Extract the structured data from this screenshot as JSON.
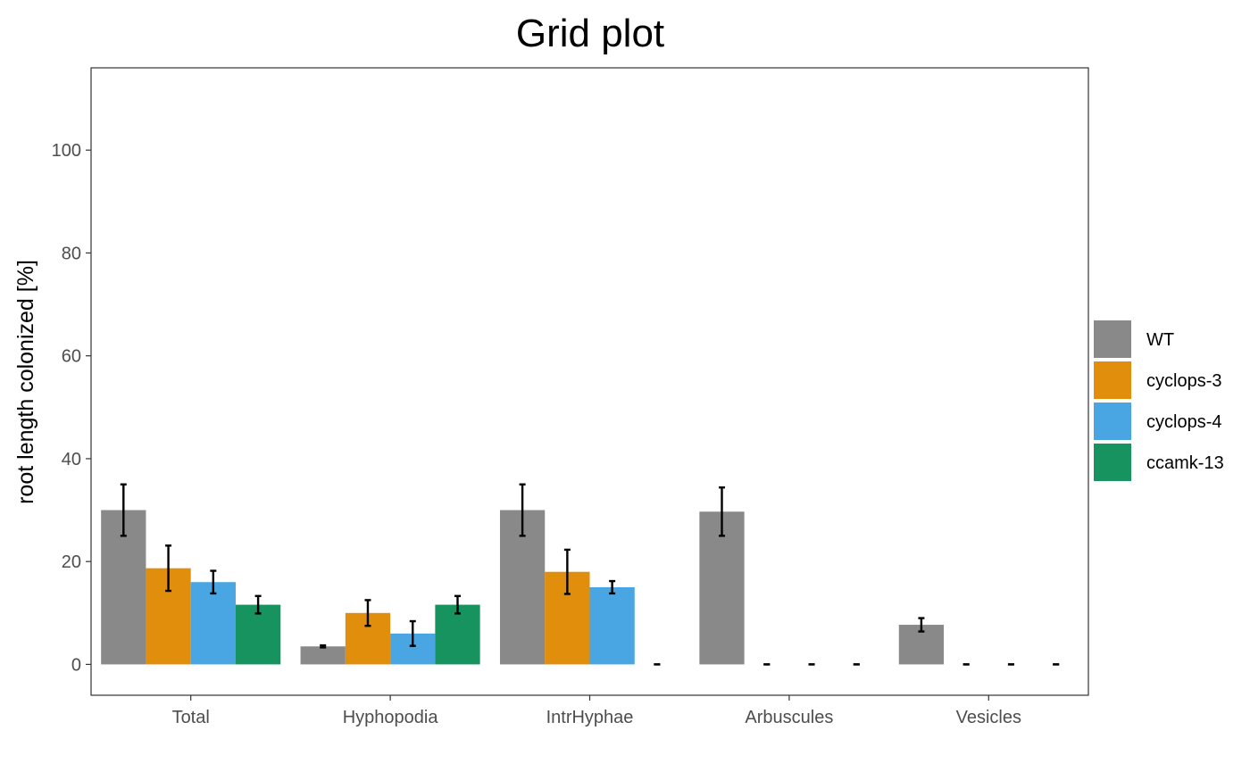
{
  "chart_data": {
    "type": "bar",
    "title": "Grid plot",
    "xlabel": "",
    "ylabel": "root length colonized [%]",
    "ylim": [
      -6,
      116
    ],
    "yticks": [
      0,
      20,
      40,
      60,
      80,
      100
    ],
    "categories": [
      "Total",
      "Hyphopodia",
      "IntrHyphae",
      "Arbuscules",
      "Vesicles"
    ],
    "series": [
      {
        "name": "WT",
        "color": "#898989",
        "values": [
          30.0,
          3.5,
          30.0,
          29.7,
          7.7
        ],
        "err": [
          5.0,
          0.2,
          5.0,
          4.7,
          1.3
        ]
      },
      {
        "name": "cyclops-3",
        "color": "#E08E0B",
        "values": [
          18.7,
          10.0,
          18.0,
          0,
          0
        ],
        "err": [
          4.4,
          2.5,
          4.3,
          0,
          0
        ]
      },
      {
        "name": "cyclops-4",
        "color": "#4AA6E2",
        "values": [
          16.0,
          6.0,
          15.0,
          0,
          0
        ],
        "err": [
          2.2,
          2.4,
          1.2,
          0,
          0
        ]
      },
      {
        "name": "ccamk-13",
        "color": "#16935F",
        "values": [
          11.6,
          11.6,
          0,
          0,
          0
        ],
        "err": [
          1.7,
          1.7,
          0,
          0,
          0
        ]
      }
    ],
    "grid": false,
    "legend_position": "right"
  }
}
